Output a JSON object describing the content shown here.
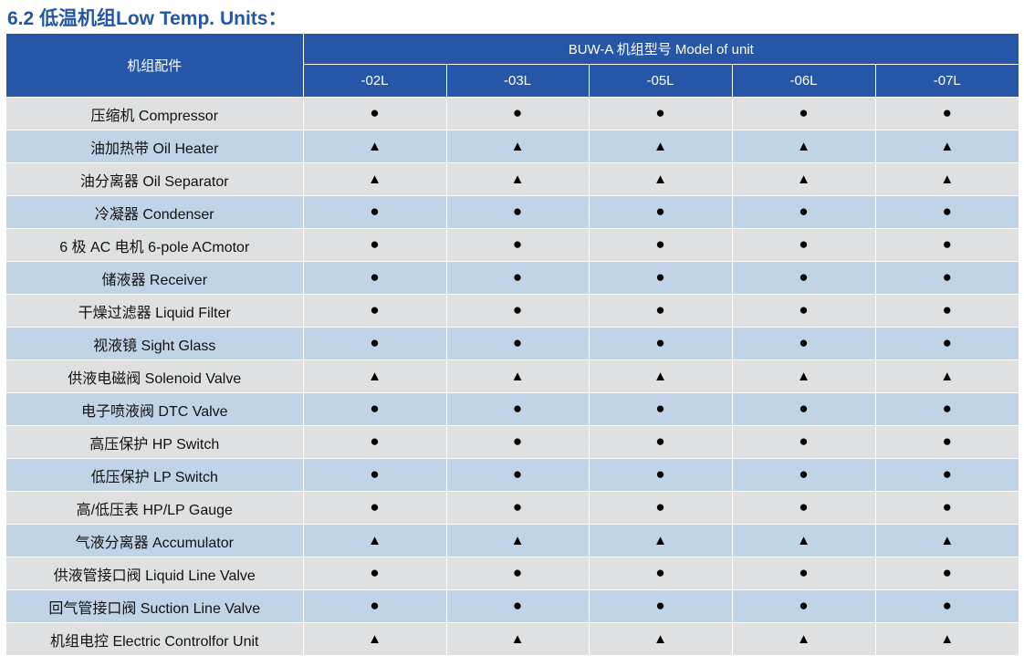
{
  "title": "6.2 低温机组Low Temp. Units：",
  "header": {
    "component_label": "机组配件",
    "model_group_label": "BUW-A 机组型号  Model of unit",
    "models": [
      "-02L",
      "-03L",
      "-05L",
      "-06L",
      "-07L"
    ]
  },
  "symbols": {
    "standard": "●",
    "optional": "▲"
  },
  "rows": [
    {
      "label": "压缩机 Compressor",
      "marks": [
        "●",
        "●",
        "●",
        "●",
        "●"
      ]
    },
    {
      "label": "油加热带 Oil Heater",
      "marks": [
        "▲",
        "▲",
        "▲",
        "▲",
        "▲"
      ]
    },
    {
      "label": "油分离器 Oil Separator",
      "marks": [
        "▲",
        "▲",
        "▲",
        "▲",
        "▲"
      ]
    },
    {
      "label": "冷凝器 Condenser",
      "marks": [
        "●",
        "●",
        "●",
        "●",
        "●"
      ]
    },
    {
      "label": "6 极 AC 电机  6-pole ACmotor",
      "marks": [
        "●",
        "●",
        "●",
        "●",
        "●"
      ]
    },
    {
      "label": "储液器  Receiver",
      "marks": [
        "●",
        "●",
        "●",
        "●",
        "●"
      ]
    },
    {
      "label": "干燥过滤器 Liquid Filter",
      "marks": [
        "●",
        "●",
        "●",
        "●",
        "●"
      ]
    },
    {
      "label": "视液镜 Sight Glass",
      "marks": [
        "●",
        "●",
        "●",
        "●",
        "●"
      ]
    },
    {
      "label": "供液电磁阀 Solenoid Valve",
      "marks": [
        "▲",
        "▲",
        "▲",
        "▲",
        "▲"
      ]
    },
    {
      "label": "电子喷液阀 DTC Valve",
      "marks": [
        "●",
        "●",
        "●",
        "●",
        "●"
      ]
    },
    {
      "label": "高压保护 HP Switch",
      "marks": [
        "●",
        "●",
        "●",
        "●",
        "●"
      ]
    },
    {
      "label": "低压保护 LP Switch",
      "marks": [
        "●",
        "●",
        "●",
        "●",
        "●"
      ]
    },
    {
      "label": "高/低压表 HP/LP Gauge",
      "marks": [
        "●",
        "●",
        "●",
        "●",
        "●"
      ]
    },
    {
      "label": "气液分离器 Accumulator",
      "marks": [
        "▲",
        "▲",
        "▲",
        "▲",
        "▲"
      ]
    },
    {
      "label": "供液管接口阀 Liquid Line Valve",
      "marks": [
        "●",
        "●",
        "●",
        "●",
        "●"
      ]
    },
    {
      "label": "回气管接口阀 Suction Line Valve",
      "marks": [
        "●",
        "●",
        "●",
        "●",
        "●"
      ]
    },
    {
      "label": "机组电控 Electric Controlfor Unit",
      "marks": [
        "▲",
        "▲",
        "▲",
        "▲",
        "▲"
      ]
    }
  ]
}
